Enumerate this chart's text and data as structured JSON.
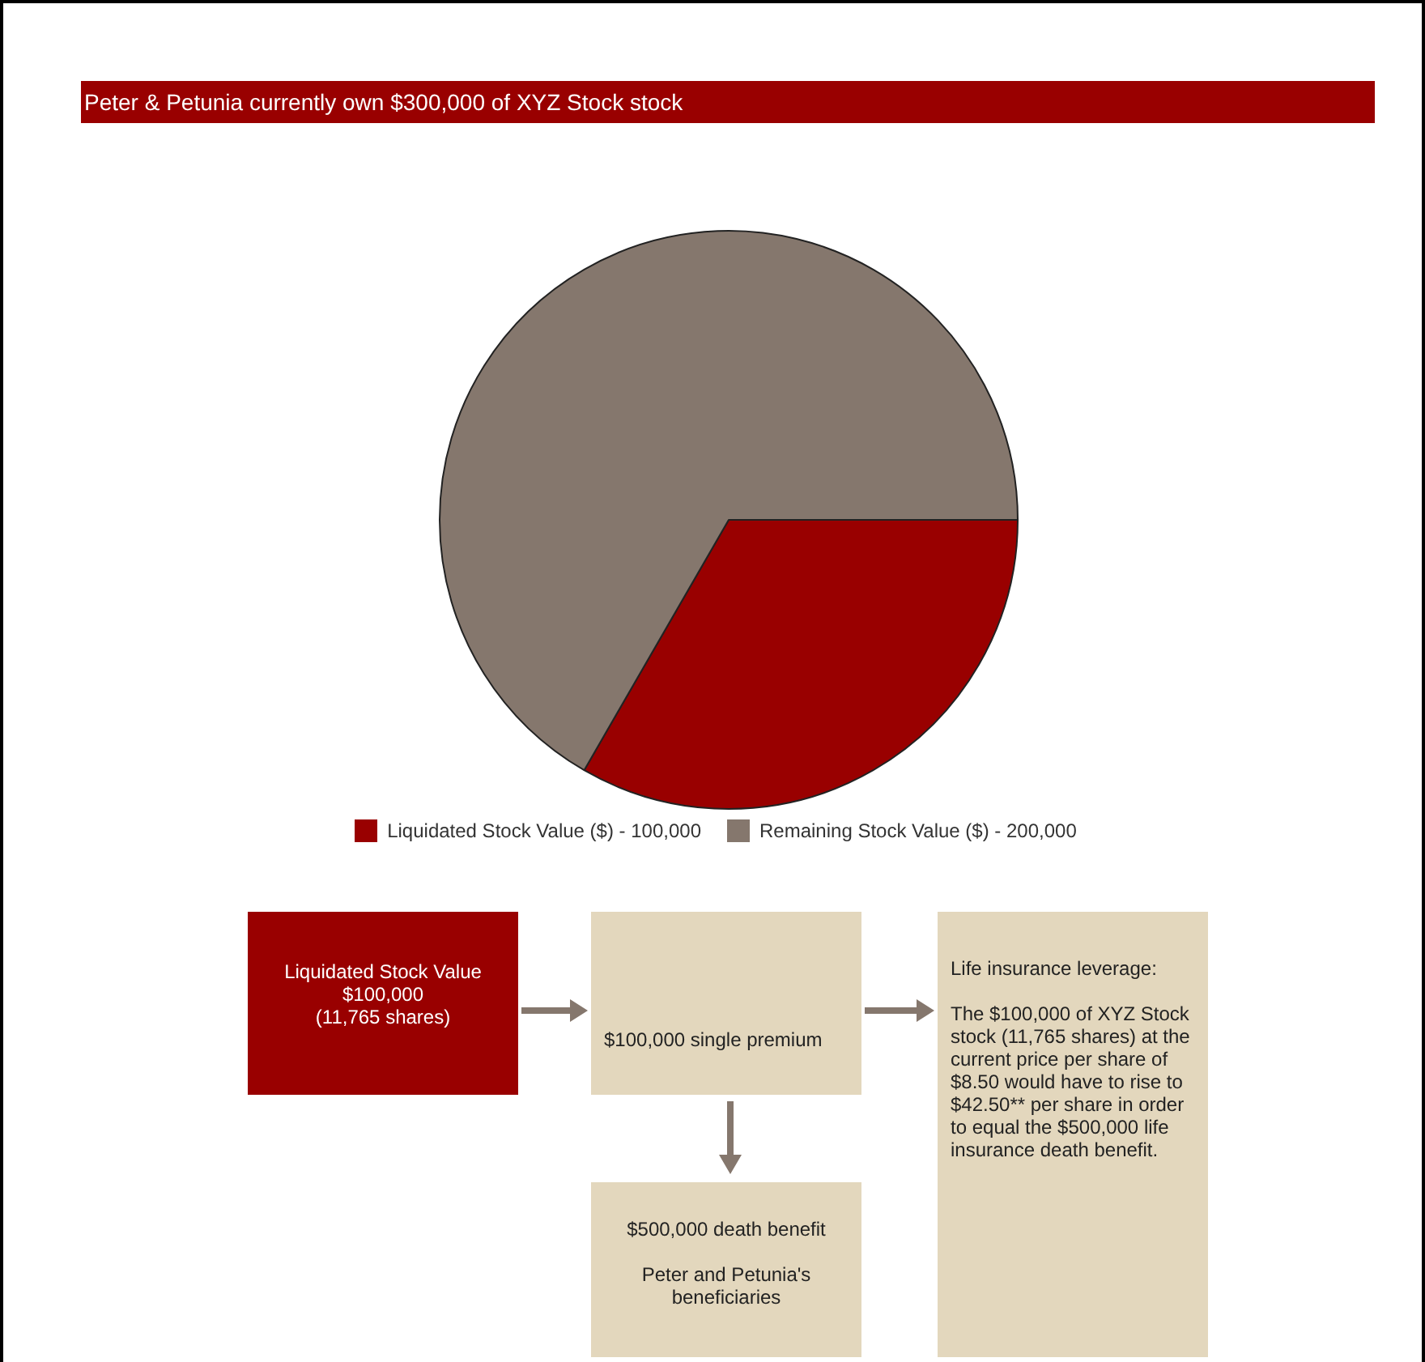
{
  "chart_data": {
    "type": "pie",
    "title": "Peter & Petunia currently own $300,000 of XYZ Stock stock",
    "categories": [
      "Liquidated Stock Value ($)",
      "Remaining Stock Value ($)"
    ],
    "values": [
      100000,
      200000
    ],
    "value_labels": [
      "100,000",
      "200,000"
    ],
    "colors": [
      "#990000",
      "#85776d"
    ],
    "legend": "bottom",
    "annotations": [
      "Liquidated Stock Value\n$100,000\n(11,765 shares)",
      "$100,000 single premium",
      "$500,000 death benefit\n\nPeter and Petunia's beneficiaries",
      "Life insurance leverage:\n\nThe $100,000 of XYZ Stock stock (11,765 shares) at the current price per share of $8.50 would have to rise to $42.50** per share in order to equal the $500,000 life insurance death benefit."
    ]
  }
}
